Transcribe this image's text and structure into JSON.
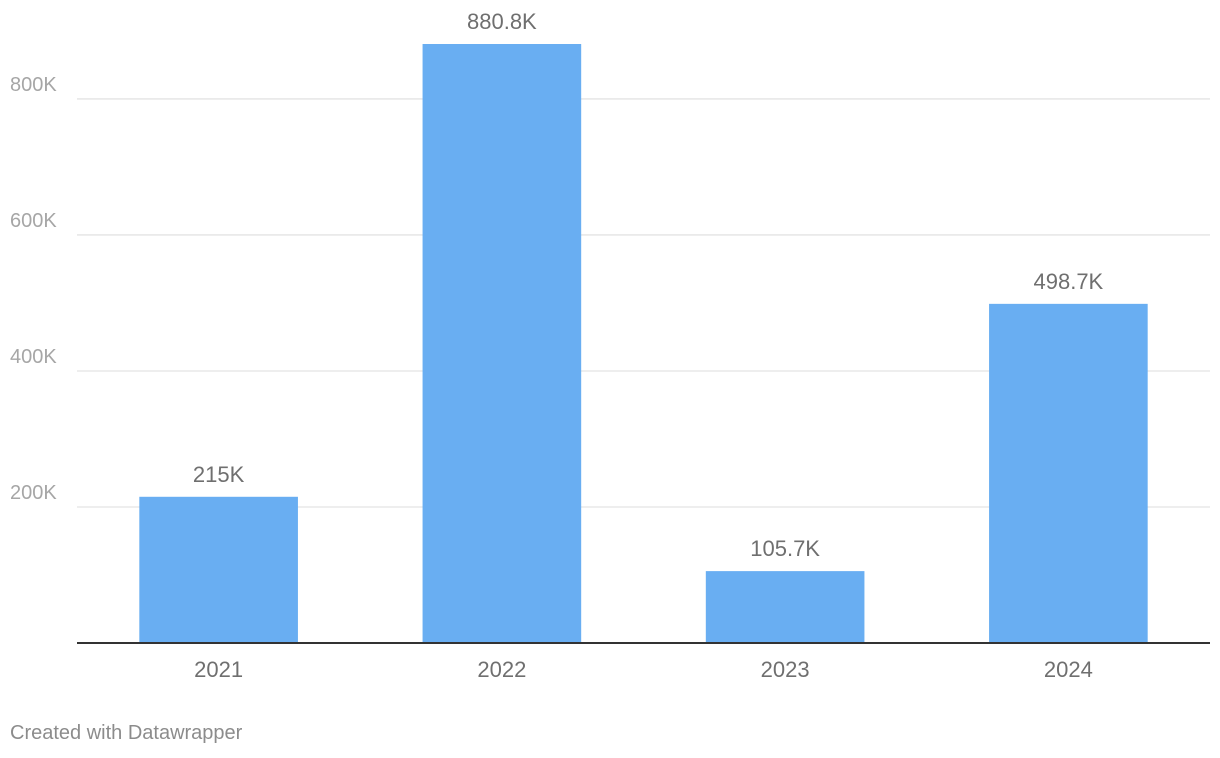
{
  "chart_data": {
    "type": "bar",
    "categories": [
      "2021",
      "2022",
      "2023",
      "2024"
    ],
    "values": [
      215000,
      880800,
      105700,
      498700
    ],
    "value_labels": [
      "215K",
      "880.8K",
      "105.7K",
      "498.7K"
    ],
    "ylim": [
      0,
      880800
    ],
    "yticks": [
      200000,
      400000,
      600000,
      800000
    ],
    "ytick_labels": [
      "200K",
      "400K",
      "600K",
      "800K"
    ],
    "grid": true,
    "title": "",
    "xlabel": "",
    "ylabel": ""
  },
  "colors": {
    "bar": "#69aef2",
    "grid": "#e3e3e3",
    "axis": "#333333",
    "tick_label": "#a6a6a6",
    "category_label": "#6f6f6f",
    "value_label": "#6f6f6f"
  },
  "footer": {
    "credit": "Created with Datawrapper"
  }
}
